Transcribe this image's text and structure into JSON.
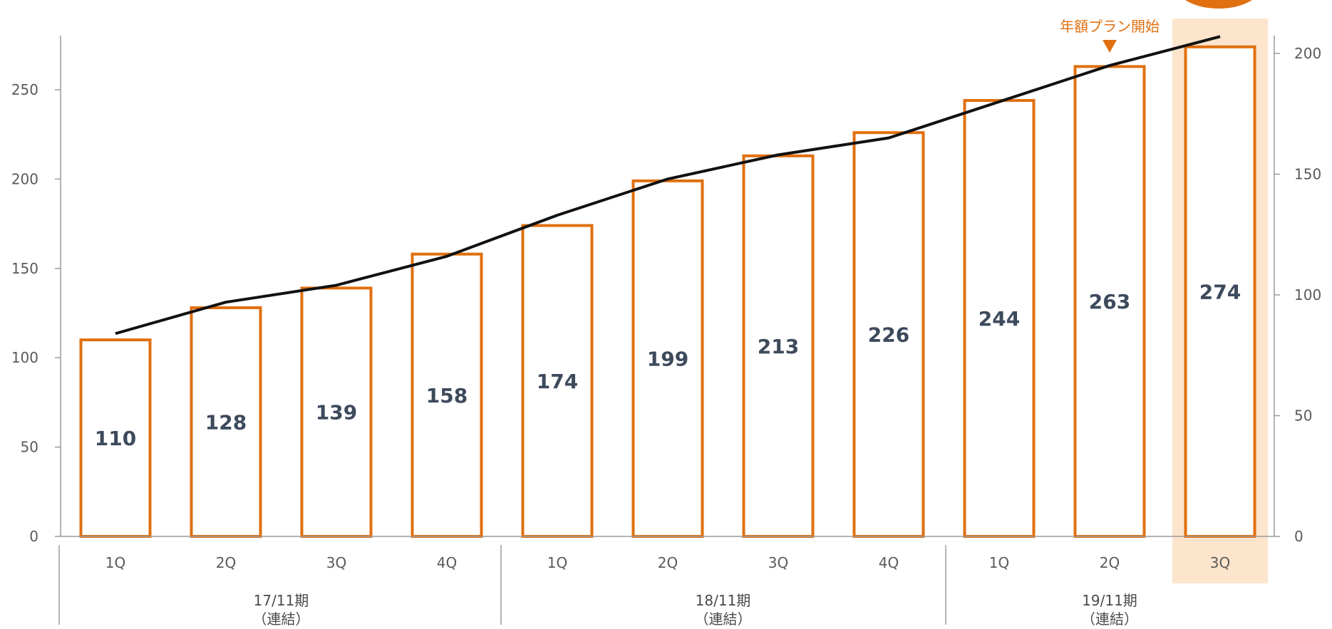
{
  "chart_data": {
    "type": "bar",
    "title": "",
    "categories": [
      "1Q",
      "2Q",
      "3Q",
      "4Q",
      "1Q",
      "2Q",
      "3Q",
      "4Q",
      "1Q",
      "2Q",
      "3Q"
    ],
    "groups": [
      {
        "label": "17/11期",
        "sublabel": "（連結）",
        "span": [
          0,
          3
        ]
      },
      {
        "label": "18/11期",
        "sublabel": "（連結）",
        "span": [
          4,
          7
        ]
      },
      {
        "label": "19/11期",
        "sublabel": "（連結）",
        "span": [
          8,
          10
        ]
      }
    ],
    "series": [
      {
        "type": "bar",
        "values": [
          110,
          128,
          139,
          158,
          174,
          199,
          213,
          226,
          244,
          263,
          274
        ],
        "axis": "left"
      },
      {
        "type": "line",
        "values": [
          84,
          97,
          104,
          116,
          133,
          148,
          158,
          165,
          180,
          195,
          207
        ],
        "axis": "right"
      }
    ],
    "left_axis": {
      "ticks": [
        "0",
        "50",
        "100",
        "150",
        "200",
        "250"
      ],
      "ylim": [
        0,
        280
      ]
    },
    "right_axis": {
      "ticks": [
        "0",
        "50",
        "100",
        "150",
        "200"
      ],
      "ylim": [
        0,
        207
      ]
    },
    "highlight_index": 10,
    "annotation": {
      "text": "年額プラン開始",
      "index": 9
    },
    "colors": {
      "bar": "#e07010",
      "line": "#111111",
      "highlight": "#fce4cd",
      "text": "#3d4a5c"
    },
    "grid": false
  }
}
